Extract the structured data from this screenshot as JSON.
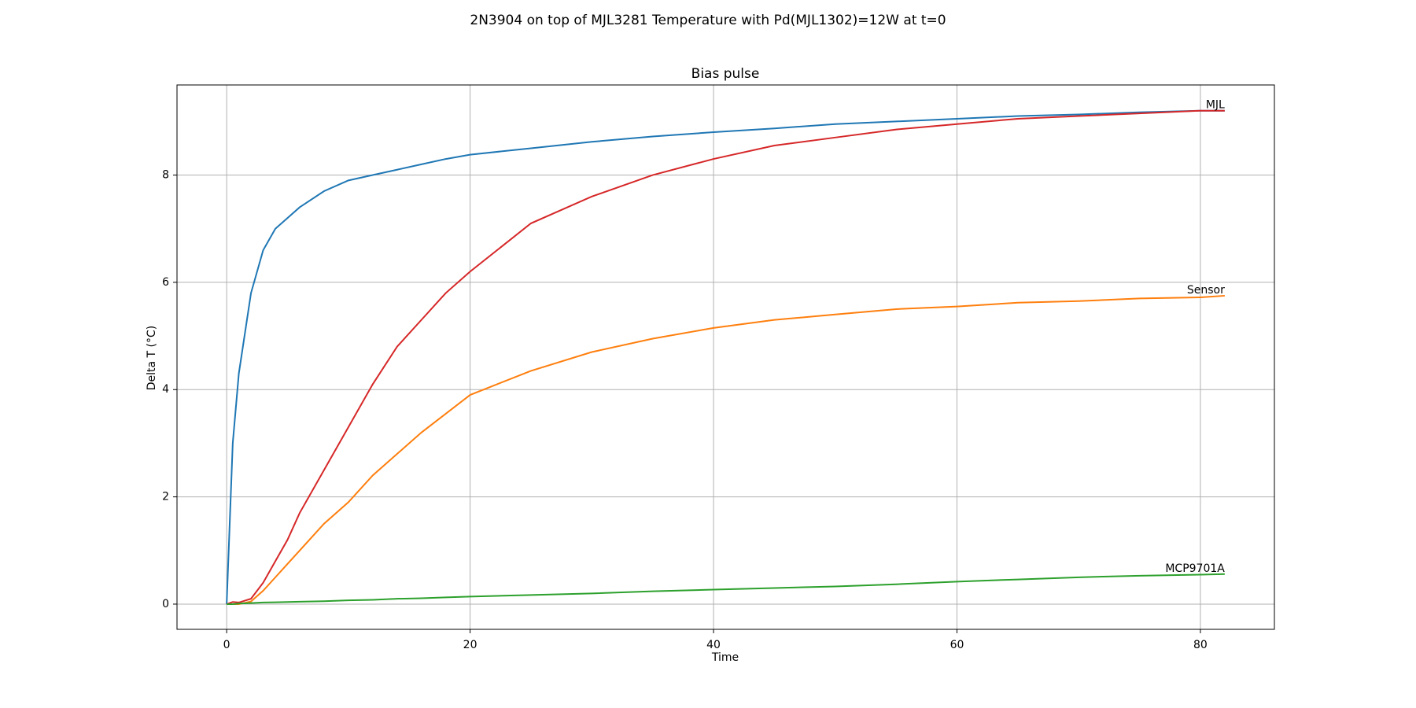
{
  "chart_data": {
    "type": "line",
    "title": "2N3904 on top of MJL3281 Temperature with Pd(MJL1302)=12W at t=0",
    "subtitle": "Bias pulse",
    "x_label": "Time",
    "y_label": "Delta T (°C)",
    "x": [
      0,
      0.5,
      1,
      2,
      3,
      4,
      5,
      6,
      8,
      10,
      12,
      14,
      16,
      18,
      20,
      25,
      30,
      35,
      40,
      45,
      50,
      55,
      60,
      65,
      70,
      75,
      80,
      82
    ],
    "series": [
      {
        "color": "#1f77b4",
        "values": [
          0,
          3.0,
          4.3,
          5.8,
          6.6,
          7.0,
          7.2,
          7.4,
          7.7,
          7.9,
          8.0,
          8.1,
          8.2,
          8.3,
          8.38,
          8.5,
          8.62,
          8.72,
          8.8,
          8.87,
          8.95,
          9.0,
          9.05,
          9.1,
          9.13,
          9.17,
          9.2,
          9.2
        ]
      },
      {
        "name": "MJL",
        "color": "#d62728",
        "values": [
          0,
          0.04,
          0.03,
          0.1,
          0.4,
          0.8,
          1.2,
          1.7,
          2.5,
          3.3,
          4.1,
          4.8,
          5.3,
          5.8,
          6.2,
          7.1,
          7.6,
          8.0,
          8.3,
          8.55,
          8.7,
          8.85,
          8.95,
          9.05,
          9.1,
          9.15,
          9.2,
          9.2
        ]
      },
      {
        "name": "Sensor",
        "color": "#ff7f0e",
        "values": [
          0,
          0,
          0,
          0.05,
          0.25,
          0.5,
          0.75,
          1.0,
          1.5,
          1.9,
          2.4,
          2.8,
          3.2,
          3.55,
          3.9,
          4.35,
          4.7,
          4.95,
          5.15,
          5.3,
          5.4,
          5.5,
          5.55,
          5.62,
          5.65,
          5.7,
          5.72,
          5.75
        ]
      },
      {
        "name": "MCP9701A",
        "color": "#2ca02c",
        "values": [
          0,
          0,
          0.01,
          0.02,
          0.03,
          0.035,
          0.04,
          0.045,
          0.055,
          0.07,
          0.08,
          0.1,
          0.11,
          0.125,
          0.14,
          0.17,
          0.2,
          0.24,
          0.27,
          0.3,
          0.33,
          0.37,
          0.42,
          0.46,
          0.5,
          0.53,
          0.55,
          0.56
        ]
      }
    ],
    "xlim": [
      -4.08,
      86.08
    ],
    "ylim": [
      -0.47,
      9.68
    ],
    "xticks": [
      0,
      20,
      40,
      60,
      80
    ],
    "yticks": [
      0,
      2,
      4,
      6,
      8
    ],
    "grid": true
  }
}
